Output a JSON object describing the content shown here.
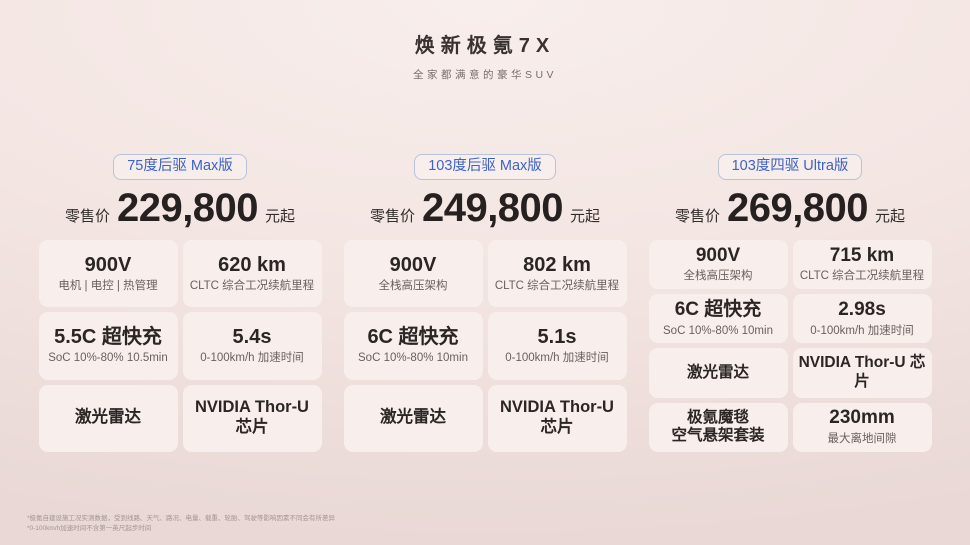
{
  "header": {
    "title": "焕新极氪7X",
    "subtitle": "全家都满意的豪华SUV"
  },
  "colors": {
    "accent_blue": "#3d63c6",
    "badge_border": "#b9c2d7",
    "background_top": "#f8eeec",
    "background_bottom": "#e9d8d5",
    "card_background": "#f8efed",
    "text_primary": "#2b2624",
    "text_secondary": "#6a605c"
  },
  "trims": [
    {
      "badge": "75度后驱 Max版",
      "price_label": "零售价",
      "price": "229,800",
      "price_unit": "元起",
      "cards": [
        {
          "main": "900V",
          "sub": "电机 | 电控 | 热管理"
        },
        {
          "main": "620 km",
          "sub": "CLTC 综合工况续航里程"
        },
        {
          "main": "5.5C 超快充",
          "sub": "SoC 10%-80% 10.5min"
        },
        {
          "main": "5.4s",
          "sub": "0-100km/h 加速时间"
        },
        {
          "main": "激光雷达",
          "sub": ""
        },
        {
          "main": "NVIDIA Thor-U 芯片",
          "sub": ""
        }
      ]
    },
    {
      "badge": "103度后驱 Max版",
      "price_label": "零售价",
      "price": "249,800",
      "price_unit": "元起",
      "cards": [
        {
          "main": "900V",
          "sub": "全栈高压架构"
        },
        {
          "main": "802 km",
          "sub": "CLTC 综合工况续航里程"
        },
        {
          "main": "6C 超快充",
          "sub": "SoC 10%-80% 10min"
        },
        {
          "main": "5.1s",
          "sub": "0-100km/h 加速时间"
        },
        {
          "main": "激光雷达",
          "sub": ""
        },
        {
          "main": "NVIDIA Thor-U 芯片",
          "sub": ""
        }
      ]
    },
    {
      "badge": "103度四驱 Ultra版",
      "price_label": "零售价",
      "price": "269,800",
      "price_unit": "元起",
      "cards": [
        {
          "main": "900V",
          "sub": "全栈高压架构"
        },
        {
          "main": "715 km",
          "sub": "CLTC 综合工况续航里程"
        },
        {
          "main": "6C 超快充",
          "sub": "SoC 10%-80% 10min"
        },
        {
          "main": "2.98s",
          "sub": "0-100km/h 加速时间"
        },
        {
          "main": "激光雷达",
          "sub": ""
        },
        {
          "main": "NVIDIA Thor-U 芯片",
          "sub": ""
        },
        {
          "main": "极氪魔毯\n空气悬架套装",
          "sub": ""
        },
        {
          "main": "230mm",
          "sub": "最大离地间隙"
        }
      ]
    }
  ],
  "footnotes": {
    "line1": "*极氪自建设施工况实测数据，受到线路、天气、路况、电量、载重、轮胎、驾驶等影响因素不同会有所差异",
    "line2": "*0-100km/h加速时间不含第一英尺起步时间"
  }
}
